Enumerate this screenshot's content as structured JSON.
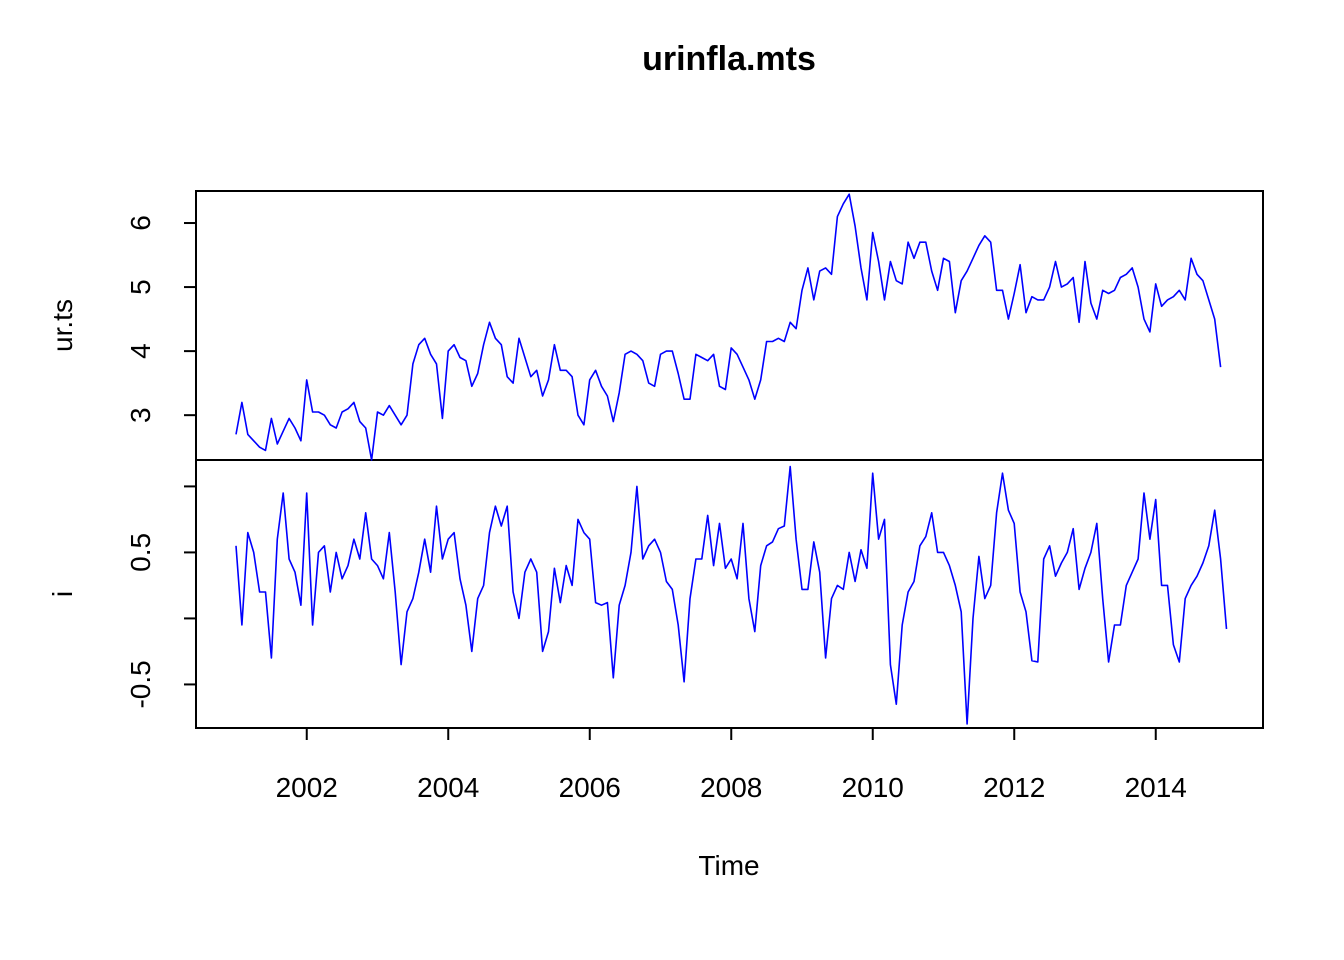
{
  "chart_data": {
    "type": "line",
    "title": "urinfla.mts",
    "xlabel": "Time",
    "x_start": 2001.0,
    "x_step": 0.08333333,
    "xlim": [
      2001.0,
      2014.9167
    ],
    "x_ticks": [
      "2002",
      "2004",
      "2006",
      "2008",
      "2010",
      "2012",
      "2014"
    ],
    "line_color": "#0000FF",
    "series": [
      {
        "name": "ur.ts",
        "ylim": [
          2.3,
          6.5
        ],
        "y_ticks": [
          "3",
          "4",
          "5",
          "6"
        ],
        "values": [
          2.7,
          3.2,
          2.7,
          2.6,
          2.5,
          2.45,
          2.95,
          2.55,
          2.75,
          2.95,
          2.8,
          2.6,
          3.55,
          3.05,
          3.05,
          3.0,
          2.85,
          2.8,
          3.05,
          3.1,
          3.2,
          2.9,
          2.8,
          2.3,
          3.05,
          3.0,
          3.15,
          3.0,
          2.85,
          3.0,
          3.8,
          4.1,
          4.2,
          3.95,
          3.8,
          2.95,
          4.0,
          4.1,
          3.9,
          3.85,
          3.45,
          3.65,
          4.1,
          4.45,
          4.2,
          4.1,
          3.6,
          3.5,
          4.2,
          3.9,
          3.6,
          3.7,
          3.3,
          3.55,
          4.1,
          3.7,
          3.7,
          3.6,
          3.0,
          2.85,
          3.55,
          3.7,
          3.45,
          3.3,
          2.9,
          3.35,
          3.95,
          4.0,
          3.95,
          3.85,
          3.5,
          3.45,
          3.95,
          4.0,
          4.0,
          3.65,
          3.25,
          3.25,
          3.95,
          3.9,
          3.85,
          3.95,
          3.45,
          3.4,
          4.05,
          3.95,
          3.75,
          3.55,
          3.25,
          3.55,
          4.15,
          4.15,
          4.2,
          4.15,
          4.45,
          4.35,
          4.95,
          5.3,
          4.8,
          5.25,
          5.3,
          5.2,
          6.1,
          6.3,
          6.45,
          5.95,
          5.3,
          4.8,
          5.85,
          5.4,
          4.8,
          5.4,
          5.1,
          5.05,
          5.7,
          5.45,
          5.7,
          5.7,
          5.25,
          4.95,
          5.45,
          5.4,
          4.6,
          5.1,
          5.25,
          5.45,
          5.65,
          5.8,
          5.7,
          4.95,
          4.95,
          4.5,
          4.9,
          5.35,
          4.6,
          4.85,
          4.8,
          4.8,
          5.0,
          5.4,
          5.0,
          5.05,
          5.15,
          4.45,
          5.4,
          4.75,
          4.5,
          4.95,
          4.9,
          4.95,
          5.15,
          5.2,
          5.3,
          5.0,
          4.5,
          4.3,
          5.05,
          4.7,
          4.8,
          4.85,
          4.95,
          4.8,
          5.45,
          5.2,
          5.1,
          4.8,
          4.5,
          3.75
        ]
      },
      {
        "name": "i",
        "ylim": [
          -0.83,
          1.2
        ],
        "y_ticks": [
          "-0.5",
          "0.5"
        ],
        "values": [
          0.55,
          -0.05,
          0.65,
          0.5,
          0.2,
          0.2,
          -0.3,
          0.6,
          0.95,
          0.45,
          0.35,
          0.1,
          0.95,
          -0.05,
          0.5,
          0.55,
          0.2,
          0.5,
          0.3,
          0.4,
          0.6,
          0.45,
          0.8,
          0.45,
          0.4,
          0.3,
          0.65,
          0.2,
          -0.35,
          0.05,
          0.15,
          0.35,
          0.6,
          0.35,
          0.85,
          0.45,
          0.6,
          0.65,
          0.3,
          0.1,
          -0.25,
          0.15,
          0.25,
          0.65,
          0.85,
          0.7,
          0.85,
          0.2,
          0.0,
          0.35,
          0.45,
          0.35,
          -0.25,
          -0.1,
          0.38,
          0.12,
          0.4,
          0.25,
          0.75,
          0.65,
          0.6,
          0.12,
          0.1,
          0.12,
          -0.45,
          0.1,
          0.25,
          0.5,
          1.0,
          0.45,
          0.55,
          0.6,
          0.5,
          0.28,
          0.22,
          -0.05,
          -0.48,
          0.15,
          0.45,
          0.45,
          0.78,
          0.4,
          0.72,
          0.38,
          0.45,
          0.3,
          0.72,
          0.15,
          -0.1,
          0.4,
          0.55,
          0.58,
          0.68,
          0.7,
          1.15,
          0.6,
          0.22,
          0.22,
          0.58,
          0.35,
          -0.3,
          0.15,
          0.25,
          0.22,
          0.5,
          0.28,
          0.52,
          0.38,
          1.1,
          0.6,
          0.75,
          -0.35,
          -0.65,
          -0.05,
          0.2,
          0.28,
          0.55,
          0.62,
          0.8,
          0.5,
          0.5,
          0.4,
          0.25,
          0.05,
          -0.8,
          0.0,
          0.47,
          0.15,
          0.25,
          0.8,
          1.1,
          0.82,
          0.72,
          0.2,
          0.05,
          -0.32,
          -0.33,
          0.45,
          0.55,
          0.32,
          0.42,
          0.5,
          0.68,
          0.22,
          0.38,
          0.5,
          0.72,
          0.15,
          -0.33,
          -0.05,
          -0.05,
          0.25,
          0.35,
          0.45,
          0.95,
          0.6,
          0.9,
          0.25,
          0.25,
          -0.2,
          -0.33,
          0.15,
          0.25,
          0.32,
          0.42,
          0.55,
          0.82,
          0.45,
          -0.08
        ]
      }
    ]
  }
}
